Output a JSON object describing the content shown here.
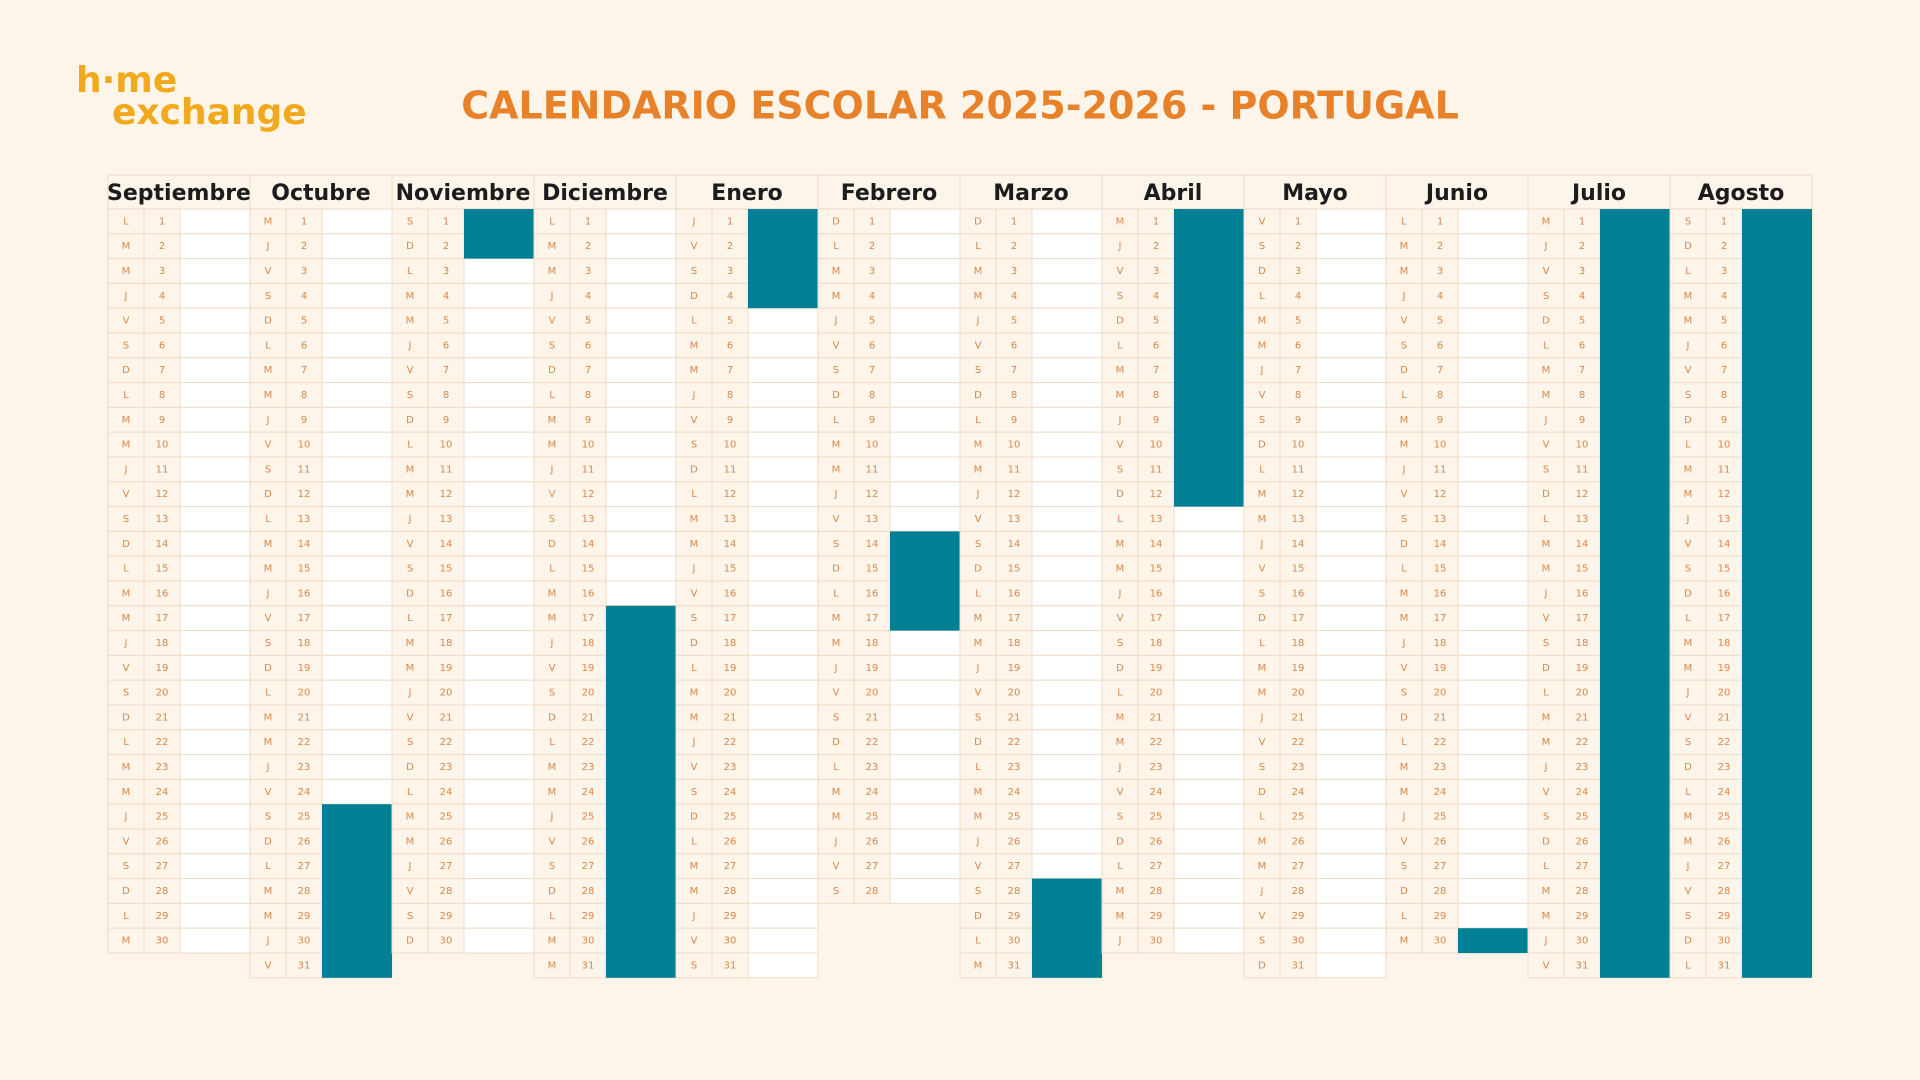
{
  "logo": {
    "line1": "h·me",
    "line2": "exchange"
  },
  "title": "CALENDARIO ESCOLAR 2025-2026 - PORTUGAL",
  "calendar": {
    "months": [
      {
        "name": "Septiembre",
        "weekdays": [
          "L",
          "M",
          "M",
          "J",
          "V",
          "S",
          "D",
          "L",
          "M",
          "M",
          "J",
          "V",
          "S",
          "D",
          "L",
          "M",
          "M",
          "J",
          "V",
          "S",
          "D",
          "L",
          "M",
          "M",
          "J",
          "V",
          "S",
          "D",
          "L",
          "M"
        ],
        "days": [
          1,
          2,
          3,
          4,
          5,
          6,
          7,
          8,
          9,
          10,
          11,
          12,
          13,
          14,
          15,
          16,
          17,
          18,
          19,
          20,
          21,
          22,
          23,
          24,
          25,
          26,
          27,
          28,
          29,
          30
        ],
        "vacation": []
      },
      {
        "name": "Octubre",
        "weekdays": [
          "M",
          "J",
          "V",
          "S",
          "D",
          "L",
          "M",
          "M",
          "J",
          "V",
          "S",
          "D",
          "L",
          "M",
          "M",
          "J",
          "V",
          "S",
          "D",
          "L",
          "M",
          "M",
          "J",
          "V",
          "S",
          "D",
          "L",
          "M",
          "M",
          "J",
          "V"
        ],
        "days": [
          1,
          2,
          3,
          4,
          5,
          6,
          7,
          8,
          9,
          10,
          11,
          12,
          13,
          14,
          15,
          16,
          17,
          18,
          19,
          20,
          21,
          22,
          23,
          24,
          25,
          26,
          27,
          28,
          29,
          30,
          31
        ],
        "vacation": [
          [
            25,
            31
          ]
        ]
      },
      {
        "name": "Noviembre",
        "weekdays": [
          "S",
          "D",
          "L",
          "M",
          "M",
          "J",
          "V",
          "S",
          "D",
          "L",
          "M",
          "M",
          "J",
          "V",
          "S",
          "D",
          "L",
          "M",
          "M",
          "J",
          "V",
          "S",
          "D",
          "L",
          "M",
          "M",
          "J",
          "V",
          "S",
          "D"
        ],
        "days": [
          1,
          2,
          3,
          4,
          5,
          6,
          7,
          8,
          9,
          10,
          11,
          12,
          13,
          14,
          15,
          16,
          17,
          18,
          19,
          20,
          21,
          22,
          23,
          24,
          25,
          26,
          27,
          28,
          29,
          30
        ],
        "vacation": [
          [
            1,
            2
          ]
        ]
      },
      {
        "name": "Diciembre",
        "weekdays": [
          "L",
          "M",
          "M",
          "J",
          "V",
          "S",
          "D",
          "L",
          "M",
          "M",
          "J",
          "V",
          "S",
          "D",
          "L",
          "M",
          "M",
          "J",
          "V",
          "S",
          "D",
          "L",
          "M",
          "M",
          "J",
          "V",
          "S",
          "D",
          "L",
          "M",
          "M"
        ],
        "days": [
          1,
          2,
          3,
          4,
          5,
          6,
          7,
          8,
          9,
          10,
          11,
          12,
          13,
          14,
          15,
          16,
          17,
          18,
          19,
          20,
          21,
          22,
          23,
          24,
          25,
          26,
          27,
          28,
          29,
          30,
          31
        ],
        "vacation": [
          [
            17,
            31
          ]
        ]
      },
      {
        "name": "Enero",
        "weekdays": [
          "J",
          "V",
          "S",
          "D",
          "L",
          "M",
          "M",
          "J",
          "V",
          "S",
          "D",
          "L",
          "M",
          "M",
          "J",
          "V",
          "S",
          "D",
          "L",
          "M",
          "M",
          "J",
          "V",
          "S",
          "D",
          "L",
          "M",
          "M",
          "J",
          "V",
          "S"
        ],
        "days": [
          1,
          2,
          3,
          4,
          5,
          6,
          7,
          8,
          9,
          10,
          11,
          12,
          13,
          14,
          15,
          16,
          17,
          18,
          19,
          20,
          21,
          22,
          23,
          24,
          25,
          26,
          27,
          28,
          29,
          30,
          31
        ],
        "vacation": [
          [
            1,
            4
          ]
        ]
      },
      {
        "name": "Febrero",
        "weekdays": [
          "D",
          "L",
          "M",
          "M",
          "J",
          "V",
          "S",
          "D",
          "L",
          "M",
          "M",
          "J",
          "V",
          "S",
          "D",
          "L",
          "M",
          "M",
          "J",
          "V",
          "S",
          "D",
          "L",
          "M",
          "M",
          "J",
          "V",
          "S"
        ],
        "days": [
          1,
          2,
          3,
          4,
          5,
          6,
          7,
          8,
          9,
          10,
          11,
          12,
          13,
          14,
          15,
          16,
          17,
          18,
          19,
          20,
          21,
          22,
          23,
          24,
          25,
          26,
          27,
          28
        ],
        "vacation": [
          [
            14,
            17
          ]
        ]
      },
      {
        "name": "Marzo",
        "weekdays": [
          "D",
          "L",
          "M",
          "M",
          "J",
          "V",
          "S",
          "D",
          "L",
          "M",
          "M",
          "J",
          "V",
          "S",
          "D",
          "L",
          "M",
          "M",
          "J",
          "V",
          "S",
          "D",
          "L",
          "M",
          "M",
          "J",
          "V",
          "S",
          "D",
          "L",
          "M"
        ],
        "days": [
          1,
          2,
          3,
          4,
          5,
          6,
          7,
          8,
          9,
          10,
          11,
          12,
          13,
          14,
          15,
          16,
          17,
          18,
          19,
          20,
          21,
          22,
          23,
          24,
          25,
          26,
          27,
          28,
          29,
          30,
          31
        ],
        "vacation": [
          [
            28,
            31
          ]
        ]
      },
      {
        "name": "Abril",
        "weekdays": [
          "M",
          "J",
          "V",
          "S",
          "D",
          "L",
          "M",
          "M",
          "J",
          "V",
          "S",
          "D",
          "L",
          "M",
          "M",
          "J",
          "V",
          "S",
          "D",
          "L",
          "M",
          "M",
          "J",
          "V",
          "S",
          "D",
          "L",
          "M",
          "M",
          "J"
        ],
        "days": [
          1,
          2,
          3,
          4,
          5,
          6,
          7,
          8,
          9,
          10,
          11,
          12,
          13,
          14,
          15,
          16,
          17,
          18,
          19,
          20,
          21,
          22,
          23,
          24,
          25,
          26,
          27,
          28,
          29,
          30
        ],
        "vacation": [
          [
            1,
            12
          ]
        ]
      },
      {
        "name": "Mayo",
        "weekdays": [
          "V",
          "S",
          "D",
          "L",
          "M",
          "M",
          "J",
          "V",
          "S",
          "D",
          "L",
          "M",
          "M",
          "J",
          "V",
          "S",
          "D",
          "L",
          "M",
          "M",
          "J",
          "V",
          "S",
          "D",
          "L",
          "M",
          "M",
          "J",
          "V",
          "S",
          "D"
        ],
        "days": [
          1,
          2,
          3,
          4,
          5,
          6,
          7,
          8,
          9,
          10,
          11,
          12,
          13,
          14,
          15,
          16,
          17,
          18,
          19,
          20,
          21,
          22,
          23,
          24,
          25,
          26,
          27,
          28,
          29,
          30,
          31
        ],
        "vacation": []
      },
      {
        "name": "Junio",
        "weekdays": [
          "L",
          "M",
          "M",
          "J",
          "V",
          "S",
          "D",
          "L",
          "M",
          "M",
          "J",
          "V",
          "S",
          "D",
          "L",
          "M",
          "M",
          "J",
          "V",
          "S",
          "D",
          "L",
          "M",
          "M",
          "J",
          "V",
          "S",
          "D",
          "L",
          "M"
        ],
        "days": [
          1,
          2,
          3,
          4,
          5,
          6,
          7,
          8,
          9,
          10,
          11,
          12,
          13,
          14,
          15,
          16,
          17,
          18,
          19,
          20,
          21,
          22,
          23,
          24,
          25,
          26,
          27,
          28,
          29,
          30
        ],
        "vacation": [
          [
            30,
            30
          ]
        ]
      },
      {
        "name": "Julio",
        "weekdays": [
          "M",
          "J",
          "V",
          "S",
          "D",
          "L",
          "M",
          "M",
          "J",
          "V",
          "S",
          "D",
          "L",
          "M",
          "M",
          "J",
          "V",
          "S",
          "D",
          "L",
          "M",
          "M",
          "J",
          "V",
          "S",
          "D",
          "L",
          "M",
          "M",
          "J",
          "V"
        ],
        "days": [
          1,
          2,
          3,
          4,
          5,
          6,
          7,
          8,
          9,
          10,
          11,
          12,
          13,
          14,
          15,
          16,
          17,
          18,
          19,
          20,
          21,
          22,
          23,
          24,
          25,
          26,
          27,
          28,
          29,
          30,
          31
        ],
        "vacation": [
          [
            1,
            31
          ]
        ]
      },
      {
        "name": "Agosto",
        "weekdays": [
          "S",
          "D",
          "L",
          "M",
          "M",
          "J",
          "V",
          "S",
          "D",
          "L",
          "M",
          "M",
          "J",
          "V",
          "S",
          "D",
          "L",
          "M",
          "M",
          "J",
          "V",
          "S",
          "D",
          "L",
          "M",
          "M",
          "J",
          "V",
          "S",
          "D",
          "L"
        ],
        "days": [
          1,
          2,
          3,
          4,
          5,
          6,
          7,
          8,
          9,
          10,
          11,
          12,
          13,
          14,
          15,
          16,
          17,
          18,
          19,
          20,
          21,
          22,
          23,
          24,
          25,
          26,
          27,
          28,
          29,
          30,
          31
        ],
        "vacation": [
          [
            1,
            31
          ]
        ]
      }
    ]
  }
}
